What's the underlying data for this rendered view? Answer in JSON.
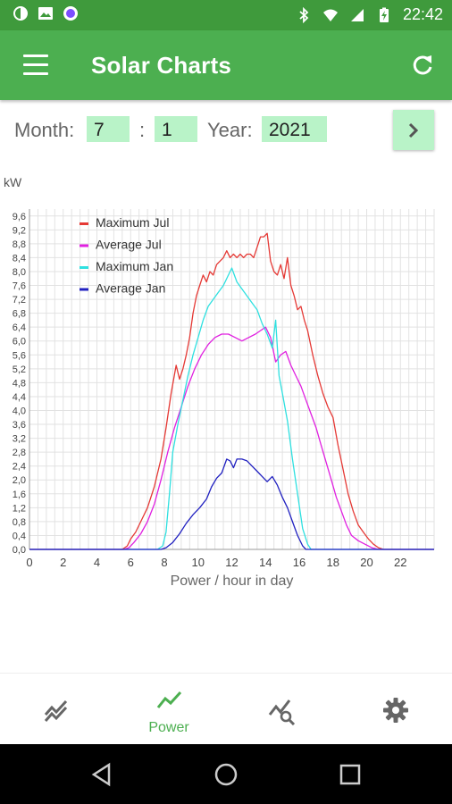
{
  "status_bar": {
    "time": "22:42",
    "left_icons": [
      "data-saver-icon",
      "image-icon",
      "record-icon"
    ],
    "right_icons": [
      "bluetooth-icon",
      "wifi-icon",
      "signal-icon",
      "battery-charging-icon"
    ]
  },
  "app_bar": {
    "title": "Solar Charts",
    "menu_icon": "menu-icon",
    "refresh_icon": "refresh-icon"
  },
  "controls": {
    "month_label": "Month:",
    "month_value": "7",
    "separator": ":",
    "day_value": "1",
    "year_label": "Year:",
    "year_value": "2021",
    "next_icon": "chevron-right-icon"
  },
  "chart_data": {
    "type": "line",
    "title": "",
    "xlabel": "Power / hour in day",
    "ylabel": "kW",
    "xlim": [
      0,
      24
    ],
    "ylim": [
      0,
      9.8
    ],
    "x_ticks": [
      "0",
      "2",
      "4",
      "6",
      "8",
      "10",
      "12",
      "14",
      "16",
      "18",
      "20",
      "22"
    ],
    "y_ticks": [
      "0,0",
      "0,4",
      "0,8",
      "1,2",
      "1,6",
      "2,0",
      "2,4",
      "2,8",
      "3,2",
      "3,6",
      "4,0",
      "4,4",
      "4,8",
      "5,2",
      "5,6",
      "6,0",
      "6,4",
      "6,8",
      "7,2",
      "7,6",
      "8,0",
      "8,4",
      "8,8",
      "9,2",
      "9,6"
    ],
    "grid": true,
    "legend_position": "top-left",
    "series": [
      {
        "name": "Maximum Jul",
        "color": "#e53935",
        "points": [
          [
            0,
            0
          ],
          [
            5.5,
            0
          ],
          [
            5.8,
            0.1
          ],
          [
            6.0,
            0.3
          ],
          [
            6.3,
            0.5
          ],
          [
            6.6,
            0.8
          ],
          [
            7.0,
            1.2
          ],
          [
            7.4,
            1.8
          ],
          [
            7.8,
            2.6
          ],
          [
            8.1,
            3.5
          ],
          [
            8.4,
            4.5
          ],
          [
            8.7,
            5.3
          ],
          [
            8.9,
            4.9
          ],
          [
            9.1,
            5.2
          ],
          [
            9.3,
            5.6
          ],
          [
            9.5,
            6.1
          ],
          [
            9.7,
            6.8
          ],
          [
            9.9,
            7.3
          ],
          [
            10.1,
            7.6
          ],
          [
            10.3,
            7.9
          ],
          [
            10.5,
            7.7
          ],
          [
            10.7,
            8.0
          ],
          [
            10.9,
            7.9
          ],
          [
            11.1,
            8.2
          ],
          [
            11.3,
            8.3
          ],
          [
            11.5,
            8.4
          ],
          [
            11.7,
            8.6
          ],
          [
            11.9,
            8.4
          ],
          [
            12.1,
            8.5
          ],
          [
            12.3,
            8.4
          ],
          [
            12.5,
            8.5
          ],
          [
            12.7,
            8.4
          ],
          [
            12.9,
            8.5
          ],
          [
            13.1,
            8.5
          ],
          [
            13.3,
            8.4
          ],
          [
            13.5,
            8.7
          ],
          [
            13.7,
            9.0
          ],
          [
            13.9,
            9.0
          ],
          [
            14.1,
            9.1
          ],
          [
            14.3,
            8.3
          ],
          [
            14.5,
            8.0
          ],
          [
            14.7,
            7.9
          ],
          [
            14.9,
            8.2
          ],
          [
            15.1,
            7.8
          ],
          [
            15.3,
            8.4
          ],
          [
            15.5,
            7.6
          ],
          [
            15.7,
            7.3
          ],
          [
            15.9,
            6.9
          ],
          [
            16.1,
            7.0
          ],
          [
            16.3,
            6.6
          ],
          [
            16.5,
            6.3
          ],
          [
            16.8,
            5.6
          ],
          [
            17.1,
            5.0
          ],
          [
            17.4,
            4.5
          ],
          [
            17.7,
            4.1
          ],
          [
            18.0,
            3.8
          ],
          [
            18.3,
            3.0
          ],
          [
            18.6,
            2.3
          ],
          [
            18.9,
            1.6
          ],
          [
            19.2,
            1.1
          ],
          [
            19.5,
            0.7
          ],
          [
            19.8,
            0.5
          ],
          [
            20.1,
            0.3
          ],
          [
            20.4,
            0.15
          ],
          [
            20.7,
            0.05
          ],
          [
            21.0,
            0
          ],
          [
            24,
            0
          ]
        ]
      },
      {
        "name": "Average Jul",
        "color": "#e020e0",
        "points": [
          [
            0,
            0
          ],
          [
            5.6,
            0
          ],
          [
            5.9,
            0.05
          ],
          [
            6.2,
            0.2
          ],
          [
            6.6,
            0.45
          ],
          [
            7.0,
            0.8
          ],
          [
            7.4,
            1.3
          ],
          [
            7.8,
            2.0
          ],
          [
            8.2,
            2.8
          ],
          [
            8.6,
            3.5
          ],
          [
            9.0,
            4.1
          ],
          [
            9.4,
            4.7
          ],
          [
            9.8,
            5.2
          ],
          [
            10.2,
            5.6
          ],
          [
            10.6,
            5.9
          ],
          [
            11.0,
            6.1
          ],
          [
            11.4,
            6.2
          ],
          [
            11.8,
            6.2
          ],
          [
            12.2,
            6.1
          ],
          [
            12.6,
            6.0
          ],
          [
            13.0,
            6.1
          ],
          [
            13.4,
            6.2
          ],
          [
            13.7,
            6.3
          ],
          [
            14.0,
            6.4
          ],
          [
            14.3,
            6.1
          ],
          [
            14.6,
            5.4
          ],
          [
            14.9,
            5.6
          ],
          [
            15.2,
            5.7
          ],
          [
            15.5,
            5.3
          ],
          [
            15.8,
            5.0
          ],
          [
            16.1,
            4.7
          ],
          [
            16.4,
            4.3
          ],
          [
            16.7,
            3.9
          ],
          [
            17.0,
            3.5
          ],
          [
            17.3,
            3.0
          ],
          [
            17.6,
            2.5
          ],
          [
            17.9,
            2.0
          ],
          [
            18.2,
            1.5
          ],
          [
            18.5,
            1.1
          ],
          [
            18.8,
            0.7
          ],
          [
            19.1,
            0.4
          ],
          [
            19.5,
            0.25
          ],
          [
            19.9,
            0.15
          ],
          [
            20.3,
            0.05
          ],
          [
            20.7,
            0
          ],
          [
            24,
            0
          ]
        ]
      },
      {
        "name": "Maximum Jan",
        "color": "#2ee0e0",
        "points": [
          [
            0,
            0
          ],
          [
            7.6,
            0
          ],
          [
            7.9,
            0.1
          ],
          [
            8.1,
            0.5
          ],
          [
            8.3,
            1.6
          ],
          [
            8.5,
            2.8
          ],
          [
            8.8,
            3.6
          ],
          [
            9.1,
            4.3
          ],
          [
            9.4,
            5.0
          ],
          [
            9.7,
            5.6
          ],
          [
            10.0,
            6.1
          ],
          [
            10.3,
            6.6
          ],
          [
            10.6,
            7.0
          ],
          [
            10.9,
            7.2
          ],
          [
            11.2,
            7.4
          ],
          [
            11.5,
            7.6
          ],
          [
            11.8,
            7.9
          ],
          [
            12.0,
            8.1
          ],
          [
            12.3,
            7.7
          ],
          [
            12.6,
            7.5
          ],
          [
            12.9,
            7.3
          ],
          [
            13.2,
            7.1
          ],
          [
            13.5,
            6.9
          ],
          [
            13.8,
            6.5
          ],
          [
            14.1,
            6.2
          ],
          [
            14.4,
            5.8
          ],
          [
            14.6,
            6.6
          ],
          [
            14.8,
            5.0
          ],
          [
            15.0,
            4.5
          ],
          [
            15.3,
            3.7
          ],
          [
            15.6,
            2.6
          ],
          [
            15.9,
            1.6
          ],
          [
            16.2,
            0.6
          ],
          [
            16.5,
            0.15
          ],
          [
            16.7,
            0
          ],
          [
            24,
            0
          ]
        ]
      },
      {
        "name": "Average Jan",
        "color": "#2020c0",
        "points": [
          [
            0,
            0
          ],
          [
            7.8,
            0
          ],
          [
            8.1,
            0.05
          ],
          [
            8.5,
            0.2
          ],
          [
            8.9,
            0.45
          ],
          [
            9.3,
            0.75
          ],
          [
            9.7,
            1.0
          ],
          [
            10.1,
            1.2
          ],
          [
            10.5,
            1.45
          ],
          [
            10.8,
            1.8
          ],
          [
            11.1,
            2.05
          ],
          [
            11.4,
            2.2
          ],
          [
            11.7,
            2.6
          ],
          [
            11.9,
            2.55
          ],
          [
            12.1,
            2.35
          ],
          [
            12.3,
            2.6
          ],
          [
            12.6,
            2.6
          ],
          [
            12.9,
            2.55
          ],
          [
            13.2,
            2.4
          ],
          [
            13.5,
            2.25
          ],
          [
            13.8,
            2.1
          ],
          [
            14.1,
            1.95
          ],
          [
            14.4,
            2.1
          ],
          [
            14.7,
            1.85
          ],
          [
            15.0,
            1.5
          ],
          [
            15.3,
            1.2
          ],
          [
            15.6,
            0.8
          ],
          [
            15.9,
            0.4
          ],
          [
            16.2,
            0.1
          ],
          [
            16.4,
            0
          ],
          [
            24,
            0
          ]
        ]
      }
    ]
  },
  "bottom_nav": {
    "items": [
      {
        "icon": "trend-lines-icon",
        "label": ""
      },
      {
        "icon": "power-chart-icon",
        "label": "Power",
        "active": true
      },
      {
        "icon": "chart-search-icon",
        "label": ""
      },
      {
        "icon": "gear-icon",
        "label": ""
      }
    ]
  },
  "system_nav": {
    "icons": [
      "back-icon",
      "home-icon",
      "recents-icon"
    ]
  }
}
